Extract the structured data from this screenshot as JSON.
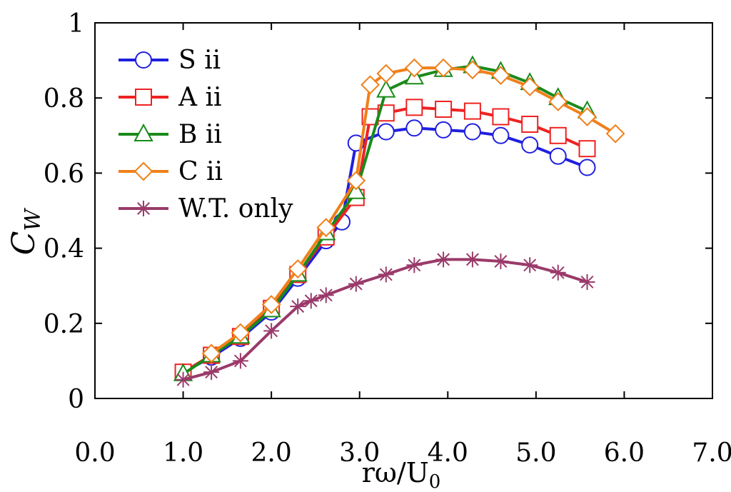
{
  "chart_data": {
    "type": "line",
    "xlabel": "rω/U",
    "xlabel_sub": "0",
    "ylabel": "C",
    "ylabel_sub": "W",
    "xlim": [
      0,
      7
    ],
    "ylim": [
      0,
      1
    ],
    "x_ticks": [
      "0.0",
      "1.0",
      "2.0",
      "3.0",
      "4.0",
      "5.0",
      "6.0",
      "7.0"
    ],
    "y_ticks": [
      "0",
      "0.2",
      "0.4",
      "0.6",
      "0.8",
      "1"
    ],
    "legend_position": "top-left",
    "series": [
      {
        "name": "S ii",
        "color": "#1f1fe0",
        "marker": "circle",
        "x": [
          1.0,
          1.32,
          1.65,
          2.0,
          2.3,
          2.62,
          2.8,
          2.96,
          3.3,
          3.62,
          3.95,
          4.28,
          4.6,
          4.93,
          5.25,
          5.58
        ],
        "y": [
          0.07,
          0.11,
          0.16,
          0.23,
          0.32,
          0.42,
          0.47,
          0.68,
          0.71,
          0.72,
          0.715,
          0.71,
          0.7,
          0.675,
          0.645,
          0.615
        ]
      },
      {
        "name": "A ii",
        "color": "#ee2222",
        "marker": "square",
        "x": [
          1.0,
          1.32,
          1.65,
          2.0,
          2.3,
          2.62,
          2.96,
          3.12,
          3.3,
          3.62,
          3.95,
          4.28,
          4.6,
          4.93,
          5.25,
          5.58
        ],
        "y": [
          0.07,
          0.115,
          0.165,
          0.24,
          0.33,
          0.43,
          0.535,
          0.75,
          0.76,
          0.775,
          0.77,
          0.765,
          0.75,
          0.73,
          0.7,
          0.665
        ]
      },
      {
        "name": "B ii",
        "color": "#1a8a1a",
        "marker": "triangle",
        "x": [
          1.0,
          1.32,
          1.65,
          2.0,
          2.3,
          2.62,
          2.96,
          3.3,
          3.62,
          3.95,
          4.28,
          4.6,
          4.93,
          5.25,
          5.58
        ],
        "y": [
          0.065,
          0.115,
          0.165,
          0.235,
          0.33,
          0.44,
          0.55,
          0.82,
          0.855,
          0.875,
          0.885,
          0.87,
          0.84,
          0.8,
          0.765
        ]
      },
      {
        "name": "C ii",
        "color": "#f0801a",
        "marker": "diamond",
        "x": [
          1.32,
          1.65,
          2.0,
          2.3,
          2.62,
          2.96,
          3.12,
          3.3,
          3.62,
          3.95,
          4.28,
          4.6,
          4.93,
          5.25,
          5.58,
          5.9
        ],
        "y": [
          0.12,
          0.175,
          0.25,
          0.345,
          0.455,
          0.58,
          0.835,
          0.865,
          0.88,
          0.88,
          0.875,
          0.86,
          0.83,
          0.79,
          0.75,
          0.705
        ]
      },
      {
        "name": "W.T. only",
        "color": "#9a3a6a",
        "marker": "star",
        "x": [
          1.0,
          1.32,
          1.65,
          2.0,
          2.3,
          2.45,
          2.62,
          2.96,
          3.3,
          3.62,
          3.95,
          4.28,
          4.6,
          4.93,
          5.25,
          5.58
        ],
        "y": [
          0.05,
          0.07,
          0.1,
          0.18,
          0.245,
          0.26,
          0.275,
          0.305,
          0.33,
          0.355,
          0.37,
          0.37,
          0.365,
          0.355,
          0.335,
          0.31
        ]
      }
    ]
  }
}
